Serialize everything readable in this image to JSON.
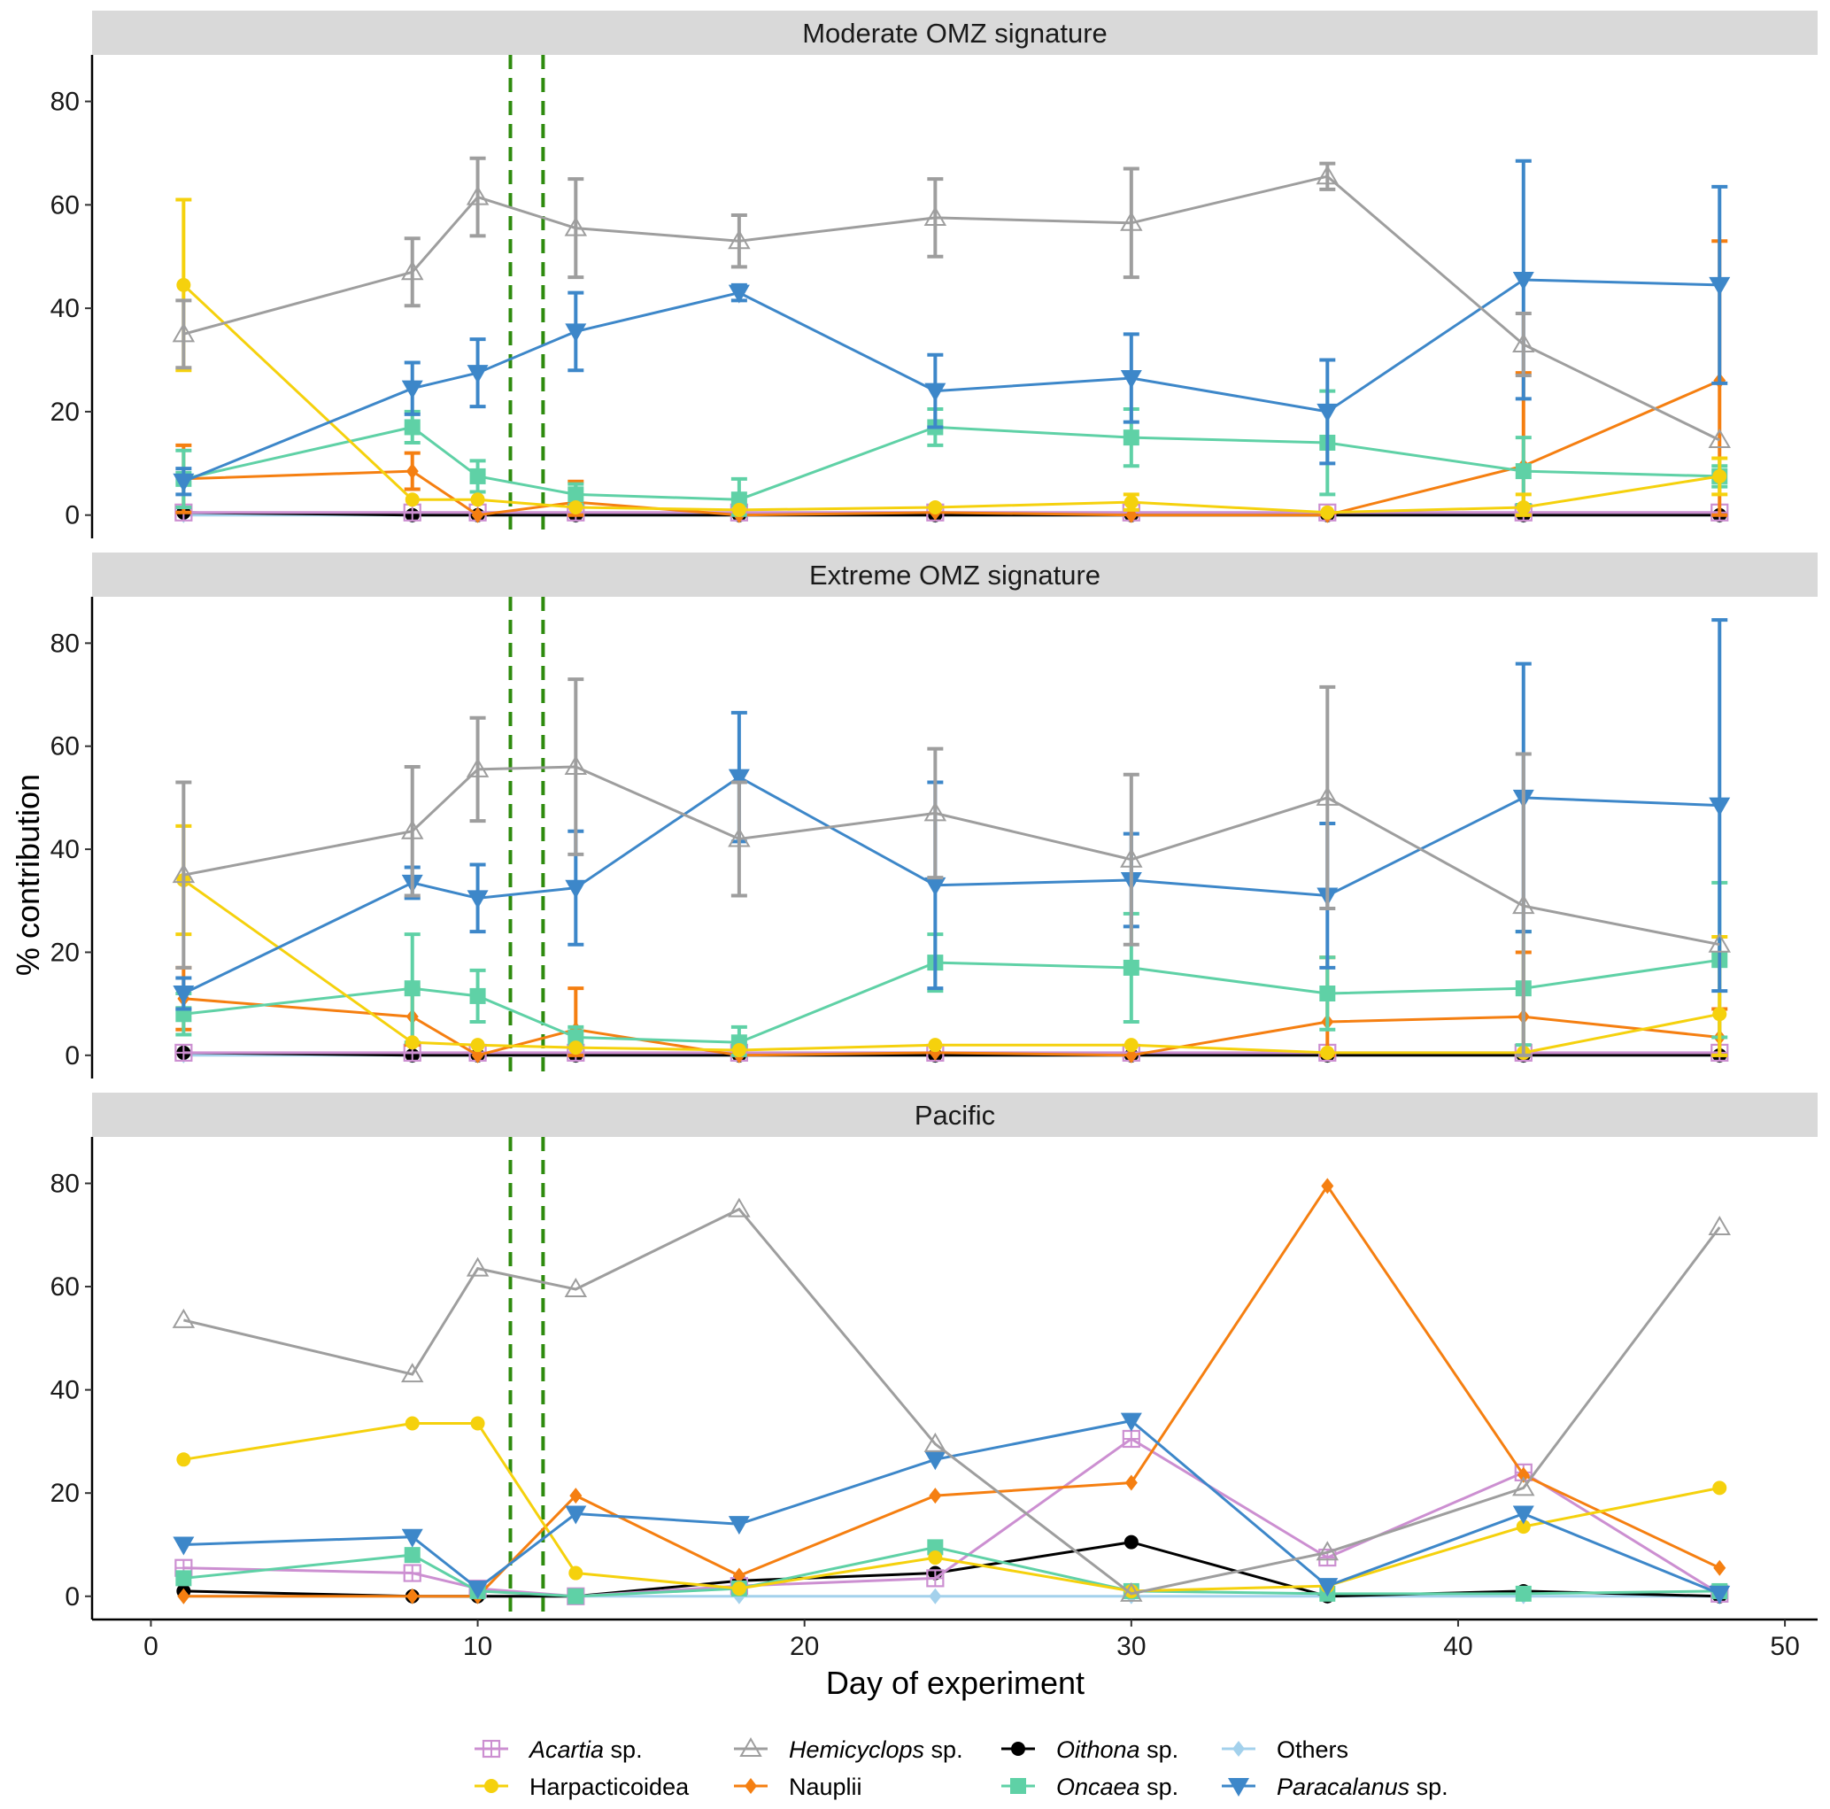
{
  "chart_data": {
    "type": "line",
    "xlabel": "Day of experiment",
    "ylabel": "% contribution",
    "xlim": [
      -1.8,
      51
    ],
    "ylim": [
      -4.5,
      89
    ],
    "x_ticks": [
      "0",
      "10",
      "20",
      "30",
      "40",
      "50"
    ],
    "y_ticks": [
      "0",
      "20",
      "40",
      "60",
      "80"
    ],
    "vlines": [
      11,
      12
    ],
    "vline_color": "#2e8b0e",
    "legend": {
      "position": "bottom",
      "entries": [
        {
          "key": "acartia",
          "italic": "Acartia",
          "rest": " sp."
        },
        {
          "key": "harpacticoidea",
          "italic": "",
          "rest": "Harpacticoidea"
        },
        {
          "key": "hemicyclops",
          "italic": "Hemicyclops",
          "rest": " sp."
        },
        {
          "key": "nauplii",
          "italic": "",
          "rest": "Nauplii"
        },
        {
          "key": "oithona",
          "italic": "Oithona",
          "rest": " sp."
        },
        {
          "key": "oncaea",
          "italic": "Oncaea",
          "rest": " sp."
        },
        {
          "key": "others",
          "italic": "",
          "rest": "Others"
        },
        {
          "key": "paracalanus",
          "italic": "Paracalanus",
          "rest": " sp."
        }
      ]
    },
    "series_styles": {
      "acartia": {
        "color": "#cc8fd1",
        "marker": "square-plus"
      },
      "harpacticoidea": {
        "color": "#f5d10d",
        "marker": "circle"
      },
      "hemicyclops": {
        "color": "#9e9e9e",
        "marker": "triangle-open"
      },
      "nauplii": {
        "color": "#f57f11",
        "marker": "diamond"
      },
      "oithona": {
        "color": "#000000",
        "marker": "circle"
      },
      "oncaea": {
        "color": "#5fd1a6",
        "marker": "square"
      },
      "others": {
        "color": "#a3d1ec",
        "marker": "diamond"
      },
      "paracalanus": {
        "color": "#3d87c9",
        "marker": "triangle-down"
      }
    },
    "panels": [
      {
        "title": "Moderate OMZ signature",
        "series": [
          {
            "key": "hemicyclops",
            "x": [
              1,
              8,
              10,
              13,
              18,
              24,
              30,
              36,
              42,
              48
            ],
            "y": [
              35,
              47,
              61.5,
              55.5,
              53,
              57.5,
              56.5,
              65.5,
              33,
              14.5
            ],
            "err": [
              6.5,
              6.5,
              7.5,
              9.5,
              5,
              7.5,
              10.5,
              2.5,
              6,
              0
            ]
          },
          {
            "key": "paracalanus",
            "x": [
              1,
              8,
              10,
              13,
              18,
              24,
              30,
              36,
              42,
              48
            ],
            "y": [
              6.5,
              24.5,
              27.5,
              35.5,
              43,
              24,
              26.5,
              20,
              45.5,
              44.5
            ],
            "err": [
              2.5,
              5,
              6.5,
              7.5,
              1.5,
              7,
              8.5,
              10,
              23,
              19
            ]
          },
          {
            "key": "harpacticoidea",
            "x": [
              1,
              8,
              10,
              13,
              18,
              24,
              30,
              36,
              42,
              48
            ],
            "y": [
              44.5,
              3,
              3,
              1.5,
              1,
              1.5,
              2.5,
              0.5,
              1.5,
              7.5
            ],
            "err": [
              16.5,
              0,
              0,
              0,
              0,
              0,
              1.5,
              0,
              2.5,
              3.5
            ]
          },
          {
            "key": "oncaea",
            "x": [
              1,
              8,
              10,
              13,
              18,
              24,
              30,
              36,
              42,
              48
            ],
            "y": [
              7,
              17,
              7.5,
              4,
              3,
              17,
              15,
              14,
              8.5,
              7.5
            ],
            "err": [
              5.5,
              3,
              3,
              2,
              4,
              3.5,
              5.5,
              10,
              6.5,
              2
            ]
          },
          {
            "key": "nauplii",
            "x": [
              1,
              8,
              10,
              13,
              18,
              24,
              30,
              36,
              42,
              48
            ],
            "y": [
              7,
              8.5,
              0,
              2.5,
              0,
              0.5,
              0,
              0,
              9.5,
              26
            ],
            "err": [
              6.5,
              3.5,
              0,
              4,
              0,
              0,
              0,
              0,
              18,
              27
            ]
          },
          {
            "key": "acartia",
            "x": [
              1,
              8,
              10,
              13,
              18,
              24,
              30,
              36,
              42,
              48
            ],
            "y": [
              0.5,
              0.5,
              0.5,
              0.5,
              0.5,
              0.5,
              0.5,
              0.5,
              0.5,
              0.5
            ],
            "err": [
              0,
              0,
              0,
              0,
              0,
              0,
              0,
              0,
              0,
              0
            ]
          },
          {
            "key": "oithona",
            "x": [
              1,
              8,
              10,
              13,
              18,
              24,
              30,
              36,
              42,
              48
            ],
            "y": [
              0.5,
              0,
              0,
              0,
              0,
              0,
              0,
              0,
              0,
              0
            ],
            "err": [
              0,
              0,
              0,
              0,
              0,
              0,
              0,
              0,
              0,
              0
            ]
          },
          {
            "key": "others",
            "x": [
              1,
              8,
              10,
              13,
              18,
              24,
              30,
              36,
              42,
              48
            ],
            "y": [
              0,
              0,
              0,
              0,
              0,
              0,
              0,
              0,
              0,
              0
            ],
            "err": [
              0,
              0,
              0,
              0,
              0,
              0,
              0,
              0,
              0,
              0
            ]
          }
        ]
      },
      {
        "title": "Extreme OMZ signature",
        "series": [
          {
            "key": "hemicyclops",
            "x": [
              1,
              8,
              10,
              13,
              18,
              24,
              30,
              36,
              42,
              48
            ],
            "y": [
              35,
              43.5,
              55.5,
              56,
              42,
              47,
              38,
              50,
              29,
              21.5
            ],
            "err": [
              18,
              12.5,
              10,
              17,
              11,
              12.5,
              16.5,
              21.5,
              29.5,
              0
            ]
          },
          {
            "key": "paracalanus",
            "x": [
              1,
              8,
              10,
              13,
              18,
              24,
              30,
              36,
              42,
              48
            ],
            "y": [
              12,
              33.5,
              30.5,
              32.5,
              54,
              33,
              34,
              31,
              50,
              48.5
            ],
            "err": [
              3,
              3,
              6.5,
              11,
              12.5,
              20,
              9,
              14,
              26,
              36
            ]
          },
          {
            "key": "harpacticoidea",
            "x": [
              1,
              8,
              10,
              13,
              18,
              24,
              30,
              36,
              42,
              48
            ],
            "y": [
              34,
              2.5,
              2,
              1.5,
              1,
              2,
              2,
              0.5,
              0.5,
              8
            ],
            "err": [
              10.5,
              0,
              0,
              0,
              0,
              0,
              0,
              0,
              0,
              15
            ]
          },
          {
            "key": "oncaea",
            "x": [
              1,
              8,
              10,
              13,
              18,
              24,
              30,
              36,
              42,
              48
            ],
            "y": [
              8,
              13,
              11.5,
              3.5,
              2.5,
              18,
              17,
              12,
              13,
              18.5
            ],
            "err": [
              4,
              10.5,
              5,
              2,
              3,
              5.5,
              10.5,
              7,
              11,
              15
            ]
          },
          {
            "key": "nauplii",
            "x": [
              1,
              8,
              10,
              13,
              18,
              24,
              30,
              36,
              42,
              48
            ],
            "y": [
              11,
              7.5,
              0,
              5,
              0,
              0.5,
              0,
              6.5,
              7.5,
              3.5
            ],
            "err": [
              6,
              5.5,
              0,
              8,
              0,
              0,
              0,
              12.5,
              12.5,
              5.5
            ]
          },
          {
            "key": "acartia",
            "x": [
              1,
              8,
              10,
              13,
              18,
              24,
              30,
              36,
              42,
              48
            ],
            "y": [
              0.5,
              0.5,
              0.5,
              0.5,
              0.5,
              0.5,
              0.5,
              0.5,
              0.5,
              0.5
            ],
            "err": [
              0,
              0,
              0,
              0,
              0,
              0,
              0,
              0,
              0,
              0
            ]
          },
          {
            "key": "oithona",
            "x": [
              1,
              8,
              10,
              13,
              18,
              24,
              30,
              36,
              42,
              48
            ],
            "y": [
              0.5,
              0,
              0,
              0,
              0,
              0,
              0,
              0,
              0,
              0
            ],
            "err": [
              0,
              0,
              0,
              0,
              0,
              0,
              0,
              0,
              0,
              0
            ]
          },
          {
            "key": "others",
            "x": [
              1,
              8,
              10,
              13,
              18,
              24,
              30,
              36,
              42,
              48
            ],
            "y": [
              0,
              0,
              0,
              0,
              0,
              0,
              0,
              0,
              0,
              0
            ],
            "err": [
              0,
              0,
              0,
              0,
              0,
              0,
              0,
              0,
              0,
              0
            ]
          }
        ]
      },
      {
        "title": "Pacific",
        "series": [
          {
            "key": "hemicyclops",
            "x": [
              1,
              8,
              10,
              13,
              18,
              24,
              30,
              36,
              42,
              48
            ],
            "y": [
              53.5,
              43,
              63.5,
              59.5,
              75,
              29.5,
              0.5,
              8.5,
              21,
              71.5
            ],
            "err": [
              0,
              0,
              0,
              0,
              0,
              0,
              0,
              0,
              0,
              0
            ]
          },
          {
            "key": "harpacticoidea",
            "x": [
              1,
              8,
              10,
              13,
              18,
              24,
              30,
              36,
              42,
              48
            ],
            "y": [
              26.5,
              33.5,
              33.5,
              4.5,
              1.5,
              7.5,
              1,
              2,
              13.5,
              21
            ],
            "err": [
              0,
              0,
              0,
              0,
              0,
              0,
              0,
              0,
              0,
              0
            ]
          },
          {
            "key": "paracalanus",
            "x": [
              1,
              8,
              10,
              13,
              18,
              24,
              30,
              36,
              42,
              48
            ],
            "y": [
              10,
              11.5,
              1.5,
              16,
              14,
              26.5,
              34,
              2,
              16,
              0.5
            ],
            "err": [
              0,
              0,
              0,
              0,
              0,
              0,
              0,
              0,
              0,
              0
            ]
          },
          {
            "key": "nauplii",
            "x": [
              1,
              8,
              10,
              13,
              18,
              24,
              30,
              36,
              42,
              48
            ],
            "y": [
              0,
              0,
              0,
              19.5,
              4,
              19.5,
              22,
              79.5,
              23.5,
              5.5
            ],
            "err": [
              0,
              0,
              0,
              0,
              0,
              0,
              0,
              0,
              0,
              0
            ]
          },
          {
            "key": "acartia",
            "x": [
              1,
              8,
              10,
              13,
              18,
              24,
              30,
              36,
              42,
              48
            ],
            "y": [
              5.5,
              4.5,
              1.5,
              0,
              2,
              3.5,
              30.5,
              7.5,
              24,
              0.5
            ],
            "err": [
              0,
              0,
              0,
              0,
              0,
              0,
              0,
              0,
              0,
              0
            ]
          },
          {
            "key": "oncaea",
            "x": [
              1,
              8,
              10,
              13,
              18,
              24,
              30,
              36,
              42,
              48
            ],
            "y": [
              3.5,
              8,
              1,
              0,
              1.5,
              9.5,
              1,
              0.5,
              0.5,
              1
            ],
            "err": [
              0,
              0,
              0,
              0,
              0,
              0,
              0,
              0,
              0,
              0
            ]
          },
          {
            "key": "oithona",
            "x": [
              1,
              8,
              10,
              13,
              18,
              24,
              30,
              36,
              42,
              48
            ],
            "y": [
              1,
              0,
              0,
              0,
              3,
              4.5,
              10.5,
              0,
              1,
              0
            ],
            "err": [
              0,
              0,
              0,
              0,
              0,
              0,
              0,
              0,
              0,
              0
            ]
          },
          {
            "key": "others",
            "x": [
              1,
              8,
              10,
              13,
              18,
              24,
              30,
              36,
              42,
              48
            ],
            "y": [
              0,
              0,
              0,
              0,
              0,
              0,
              0,
              0,
              0,
              0
            ],
            "err": [
              0,
              0,
              0,
              0,
              0,
              0,
              0,
              0,
              0,
              0
            ]
          }
        ]
      }
    ]
  }
}
